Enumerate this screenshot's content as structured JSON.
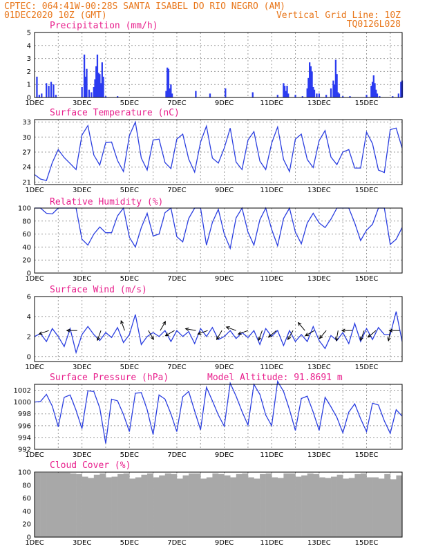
{
  "header": {
    "line1_left": "CPTEC:   064:41W-00:28S  SANTA ISABEL DO RIO NEGRO (AM)",
    "line2_left": "01DEC2020 10Z (GMT)",
    "line2_right": "Vertical Grid Line: 10Z",
    "line3_right": "TQ0126L028"
  },
  "x_axis": {
    "labels": [
      "1DEC",
      "3DEC",
      "5DEC",
      "7DEC",
      "9DEC",
      "11DEC",
      "13DEC",
      "15DEC"
    ],
    "days_span": 15.5
  },
  "colors": {
    "header": "#e8761a",
    "title": "#e81f8c",
    "series": "#2a3ee0",
    "cloud": "#a8a8a8"
  },
  "chart_data": [
    {
      "type": "bar",
      "title": "Precipitation (mm/h)",
      "ylim": [
        0,
        5
      ],
      "yticks": [
        0,
        1,
        2,
        3,
        4,
        5
      ],
      "x": [
        0.1,
        0.2,
        0.3,
        0.5,
        0.6,
        0.7,
        0.8,
        0.9,
        2.0,
        2.1,
        2.15,
        2.2,
        2.3,
        2.4,
        2.5,
        2.55,
        2.6,
        2.65,
        2.7,
        2.75,
        2.8,
        2.85,
        2.9,
        3.0,
        3.5,
        5.55,
        5.6,
        5.65,
        5.7,
        5.75,
        5.8,
        6.8,
        7.4,
        8.05,
        9.2,
        10.25,
        10.5,
        10.55,
        10.6,
        10.65,
        10.7,
        11.0,
        11.3,
        11.5,
        11.55,
        11.6,
        11.65,
        11.7,
        11.75,
        11.8,
        11.9,
        12.0,
        12.3,
        12.5,
        12.6,
        12.65,
        12.7,
        12.75,
        12.8,
        12.85,
        13.0,
        13.3,
        14.0,
        14.2,
        14.25,
        14.3,
        14.35,
        14.4,
        14.45,
        14.55,
        15.1,
        15.35,
        15.45,
        15.5
      ],
      "values": [
        1.6,
        0.2,
        0.3,
        1.1,
        0.9,
        1.2,
        1.0,
        0.2,
        0.8,
        3.3,
        1.6,
        2.2,
        0.6,
        0.4,
        0.8,
        1.4,
        2.4,
        3.3,
        1.9,
        1.8,
        1.1,
        2.7,
        1.6,
        0.1,
        0.1,
        0.5,
        2.3,
        2.2,
        0.7,
        1.0,
        0.3,
        0.5,
        0.3,
        0.7,
        0.4,
        0.2,
        1.1,
        0.9,
        0.5,
        0.9,
        0.3,
        0.2,
        0.1,
        0.7,
        1.5,
        2.7,
        2.4,
        2.0,
        0.8,
        0.6,
        0.3,
        0.3,
        0.2,
        0.7,
        1.3,
        1.0,
        2.9,
        1.8,
        0.4,
        0.3,
        0.1,
        0.1,
        0.2,
        0.9,
        1.2,
        1.7,
        1.1,
        0.6,
        0.3,
        0.1,
        0.1,
        0.3,
        1.2,
        1.3
      ],
      "annotation": ""
    },
    {
      "type": "line",
      "title": "Surface Temperature (nC)",
      "ylim": [
        20.5,
        33.5
      ],
      "yticks": [
        21,
        24,
        27,
        30,
        33
      ],
      "x": [
        0,
        0.25,
        0.5,
        0.75,
        1.0,
        1.25,
        1.5,
        1.75,
        2.0,
        2.25,
        2.5,
        2.75,
        3.0,
        3.25,
        3.5,
        3.75,
        4.0,
        4.25,
        4.5,
        4.75,
        5.0,
        5.25,
        5.5,
        5.75,
        6.0,
        6.25,
        6.5,
        6.75,
        7.0,
        7.25,
        7.5,
        7.75,
        8.0,
        8.25,
        8.5,
        8.75,
        9.0,
        9.25,
        9.5,
        9.75,
        10.0,
        10.25,
        10.5,
        10.75,
        11.0,
        11.25,
        11.5,
        11.75,
        12.0,
        12.25,
        12.5,
        12.75,
        13.0,
        13.25,
        13.5,
        13.75,
        14.0,
        14.25,
        14.5,
        14.75,
        15.0,
        15.25,
        15.5
      ],
      "values": [
        22.5,
        21.6,
        21.3,
        24.9,
        27.5,
        25.9,
        24.7,
        23.5,
        30.4,
        32.3,
        26.4,
        24.4,
        28.9,
        29.0,
        25.3,
        23.1,
        30.3,
        33.0,
        25.8,
        23.4,
        29.4,
        29.6,
        24.9,
        23.7,
        29.6,
        30.6,
        25.6,
        23.0,
        29.0,
        32.2,
        25.8,
        24.8,
        27.8,
        31.8,
        25.0,
        23.5,
        29.4,
        31.1,
        25.2,
        23.5,
        28.8,
        32.0,
        25.5,
        23.1,
        29.6,
        30.6,
        25.5,
        23.9,
        29.3,
        31.3,
        26.0,
        24.5,
        27.0,
        27.5,
        23.8,
        23.8,
        31.0,
        28.7,
        23.4,
        22.9,
        31.5,
        31.8,
        27.8
      ]
    },
    {
      "type": "line",
      "title": "Relative Humidity (%)",
      "ylim": [
        0,
        100
      ],
      "yticks": [
        0,
        20,
        40,
        60,
        80,
        100
      ],
      "x": [
        0,
        0.25,
        0.5,
        0.75,
        1.0,
        1.25,
        1.5,
        1.75,
        2.0,
        2.25,
        2.5,
        2.75,
        3.0,
        3.25,
        3.5,
        3.75,
        4.0,
        4.25,
        4.5,
        4.75,
        5.0,
        5.25,
        5.5,
        5.75,
        6.0,
        6.25,
        6.5,
        6.75,
        7.0,
        7.25,
        7.5,
        7.75,
        8.0,
        8.25,
        8.5,
        8.75,
        9.0,
        9.25,
        9.5,
        9.75,
        10.0,
        10.25,
        10.5,
        10.75,
        11.0,
        11.25,
        11.5,
        11.75,
        12.0,
        12.25,
        12.5,
        12.75,
        13.0,
        13.25,
        13.5,
        13.75,
        14.0,
        14.25,
        14.5,
        14.75,
        15.0,
        15.25,
        15.5
      ],
      "values": [
        100,
        100,
        92,
        91,
        100,
        100,
        100,
        100,
        52,
        43,
        60,
        71,
        62,
        62,
        88,
        100,
        55,
        40,
        70,
        92,
        57,
        60,
        93,
        100,
        56,
        48,
        84,
        100,
        100,
        43,
        78,
        98,
        60,
        38,
        85,
        100,
        63,
        43,
        82,
        100,
        67,
        42,
        84,
        100,
        63,
        45,
        77,
        92,
        77,
        70,
        83,
        100,
        100,
        100,
        77,
        50,
        66,
        75,
        100,
        100,
        44,
        52,
        70
      ]
    },
    {
      "type": "line",
      "title": "Surface Wind (m/s)",
      "ylim": [
        -0.5,
        6
      ],
      "yticks": [
        0,
        2,
        4,
        6
      ],
      "x": [
        0,
        0.25,
        0.5,
        0.75,
        1.0,
        1.25,
        1.5,
        1.75,
        2.0,
        2.25,
        2.5,
        2.75,
        3.0,
        3.25,
        3.5,
        3.75,
        4.0,
        4.25,
        4.5,
        4.75,
        5.0,
        5.25,
        5.5,
        5.75,
        6.0,
        6.25,
        6.5,
        6.75,
        7.0,
        7.25,
        7.5,
        7.75,
        8.0,
        8.25,
        8.5,
        8.75,
        9.0,
        9.25,
        9.5,
        9.75,
        10.0,
        10.25,
        10.5,
        10.75,
        11.0,
        11.25,
        11.5,
        11.75,
        12.0,
        12.25,
        12.5,
        12.75,
        13.0,
        13.25,
        13.5,
        13.75,
        14.0,
        14.25,
        14.5,
        14.75,
        15.0,
        15.25,
        15.5
      ],
      "values": [
        2.0,
        2.3,
        1.5,
        2.8,
        2.0,
        1.0,
        2.8,
        0.4,
        2.2,
        3.0,
        2.2,
        1.6,
        2.4,
        1.9,
        2.9,
        1.4,
        2.2,
        4.2,
        1.2,
        2.0,
        2.4,
        2.0,
        2.6,
        1.5,
        2.6,
        2.0,
        2.5,
        1.3,
        2.8,
        2.0,
        2.9,
        1.7,
        2.0,
        2.6,
        1.8,
        2.4,
        1.9,
        2.6,
        1.2,
        2.8,
        2.0,
        2.6,
        1.1,
        2.6,
        1.5,
        2.2,
        1.5,
        3.0,
        1.6,
        0.8,
        2.1,
        1.6,
        2.4,
        1.3,
        3.3,
        1.5,
        2.8,
        1.7,
        2.9,
        2.2,
        2.2,
        4.5,
        1.5
      ],
      "vectors_x": [
        0.6,
        1.8,
        2.8,
        3.8,
        4.8,
        5.3,
        5.9,
        6.8,
        7.3,
        7.9,
        8.5,
        9.0,
        9.6,
        10.2,
        10.9,
        11.4,
        11.8,
        12.3,
        12.8,
        13.4,
        13.9,
        14.4,
        15.0,
        15.4
      ],
      "vectors_dir_deg": [
        200,
        180,
        250,
        110,
        300,
        60,
        210,
        170,
        200,
        240,
        160,
        200,
        250,
        220,
        240,
        130,
        210,
        230,
        260,
        180,
        250,
        220,
        260,
        180
      ]
    },
    {
      "type": "line",
      "title": "Surface Pressure (hPa)",
      "annotation": "Model Altitude: 91.8691 m",
      "ylim": [
        992,
        1003
      ],
      "yticks": [
        992,
        994,
        996,
        998,
        1000,
        1002
      ],
      "x": [
        0,
        0.25,
        0.5,
        0.75,
        1.0,
        1.25,
        1.5,
        1.75,
        2.0,
        2.25,
        2.5,
        2.75,
        3.0,
        3.25,
        3.5,
        3.75,
        4.0,
        4.25,
        4.5,
        4.75,
        5.0,
        5.25,
        5.5,
        5.75,
        6.0,
        6.25,
        6.5,
        6.75,
        7.0,
        7.25,
        7.5,
        7.75,
        8.0,
        8.25,
        8.5,
        8.75,
        9.0,
        9.25,
        9.5,
        9.75,
        10.0,
        10.25,
        10.5,
        10.75,
        11.0,
        11.25,
        11.5,
        11.75,
        12.0,
        12.25,
        12.5,
        12.75,
        13.0,
        13.25,
        13.5,
        13.75,
        14.0,
        14.25,
        14.5,
        14.75,
        15.0,
        15.25,
        15.5
      ],
      "values": [
        1000.0,
        1000.1,
        1001.3,
        999.3,
        995.8,
        1000.8,
        1001.2,
        998.6,
        995.5,
        1001.9,
        1001.8,
        999.0,
        993.0,
        1000.5,
        1000.2,
        997.9,
        995.0,
        1001.5,
        1001.6,
        998.7,
        994.5,
        1001.2,
        1000.5,
        998.0,
        995.0,
        1000.9,
        1001.8,
        998.5,
        995.3,
        1002.5,
        1000.2,
        997.8,
        995.9,
        1003.2,
        1001.0,
        998.4,
        996.1,
        1003.0,
        1001.3,
        997.8,
        996.0,
        1003.5,
        1001.8,
        998.7,
        995.2,
        1000.6,
        1001.0,
        998.3,
        995.2,
        1000.8,
        999.2,
        997.4,
        994.8,
        998.3,
        999.7,
        997.2,
        995.0,
        999.8,
        999.5,
        996.8,
        994.7,
        998.7,
        997.6
      ]
    },
    {
      "type": "area",
      "title": "Cloud Cover (%)",
      "ylim": [
        0,
        100
      ],
      "yticks": [
        0,
        20,
        40,
        60,
        80,
        100
      ],
      "x": [
        0,
        0.25,
        0.5,
        0.75,
        1.0,
        1.25,
        1.5,
        1.75,
        2.0,
        2.25,
        2.5,
        2.75,
        3.0,
        3.25,
        3.5,
        3.75,
        4.0,
        4.25,
        4.5,
        4.75,
        5.0,
        5.25,
        5.5,
        5.75,
        6.0,
        6.25,
        6.5,
        6.75,
        7.0,
        7.25,
        7.5,
        7.75,
        8.0,
        8.25,
        8.5,
        8.75,
        9.0,
        9.25,
        9.5,
        9.75,
        10.0,
        10.25,
        10.5,
        10.75,
        11.0,
        11.25,
        11.5,
        11.75,
        12.0,
        12.25,
        12.5,
        12.75,
        13.0,
        13.25,
        13.5,
        13.75,
        14.0,
        14.25,
        14.5,
        14.75,
        15.0,
        15.25,
        15.5
      ],
      "values": [
        99,
        99,
        99,
        99,
        99,
        99,
        98,
        97,
        93,
        91,
        96,
        98,
        92,
        93,
        97,
        98,
        90,
        92,
        96,
        98,
        92,
        95,
        98,
        97,
        90,
        95,
        98,
        98,
        90,
        92,
        98,
        97,
        95,
        92,
        97,
        98,
        92,
        90,
        97,
        98,
        92,
        91,
        98,
        98,
        93,
        95,
        98,
        97,
        92,
        91,
        93,
        96,
        90,
        91,
        97,
        98,
        92,
        92,
        90,
        97,
        89,
        95,
        92
      ]
    }
  ]
}
